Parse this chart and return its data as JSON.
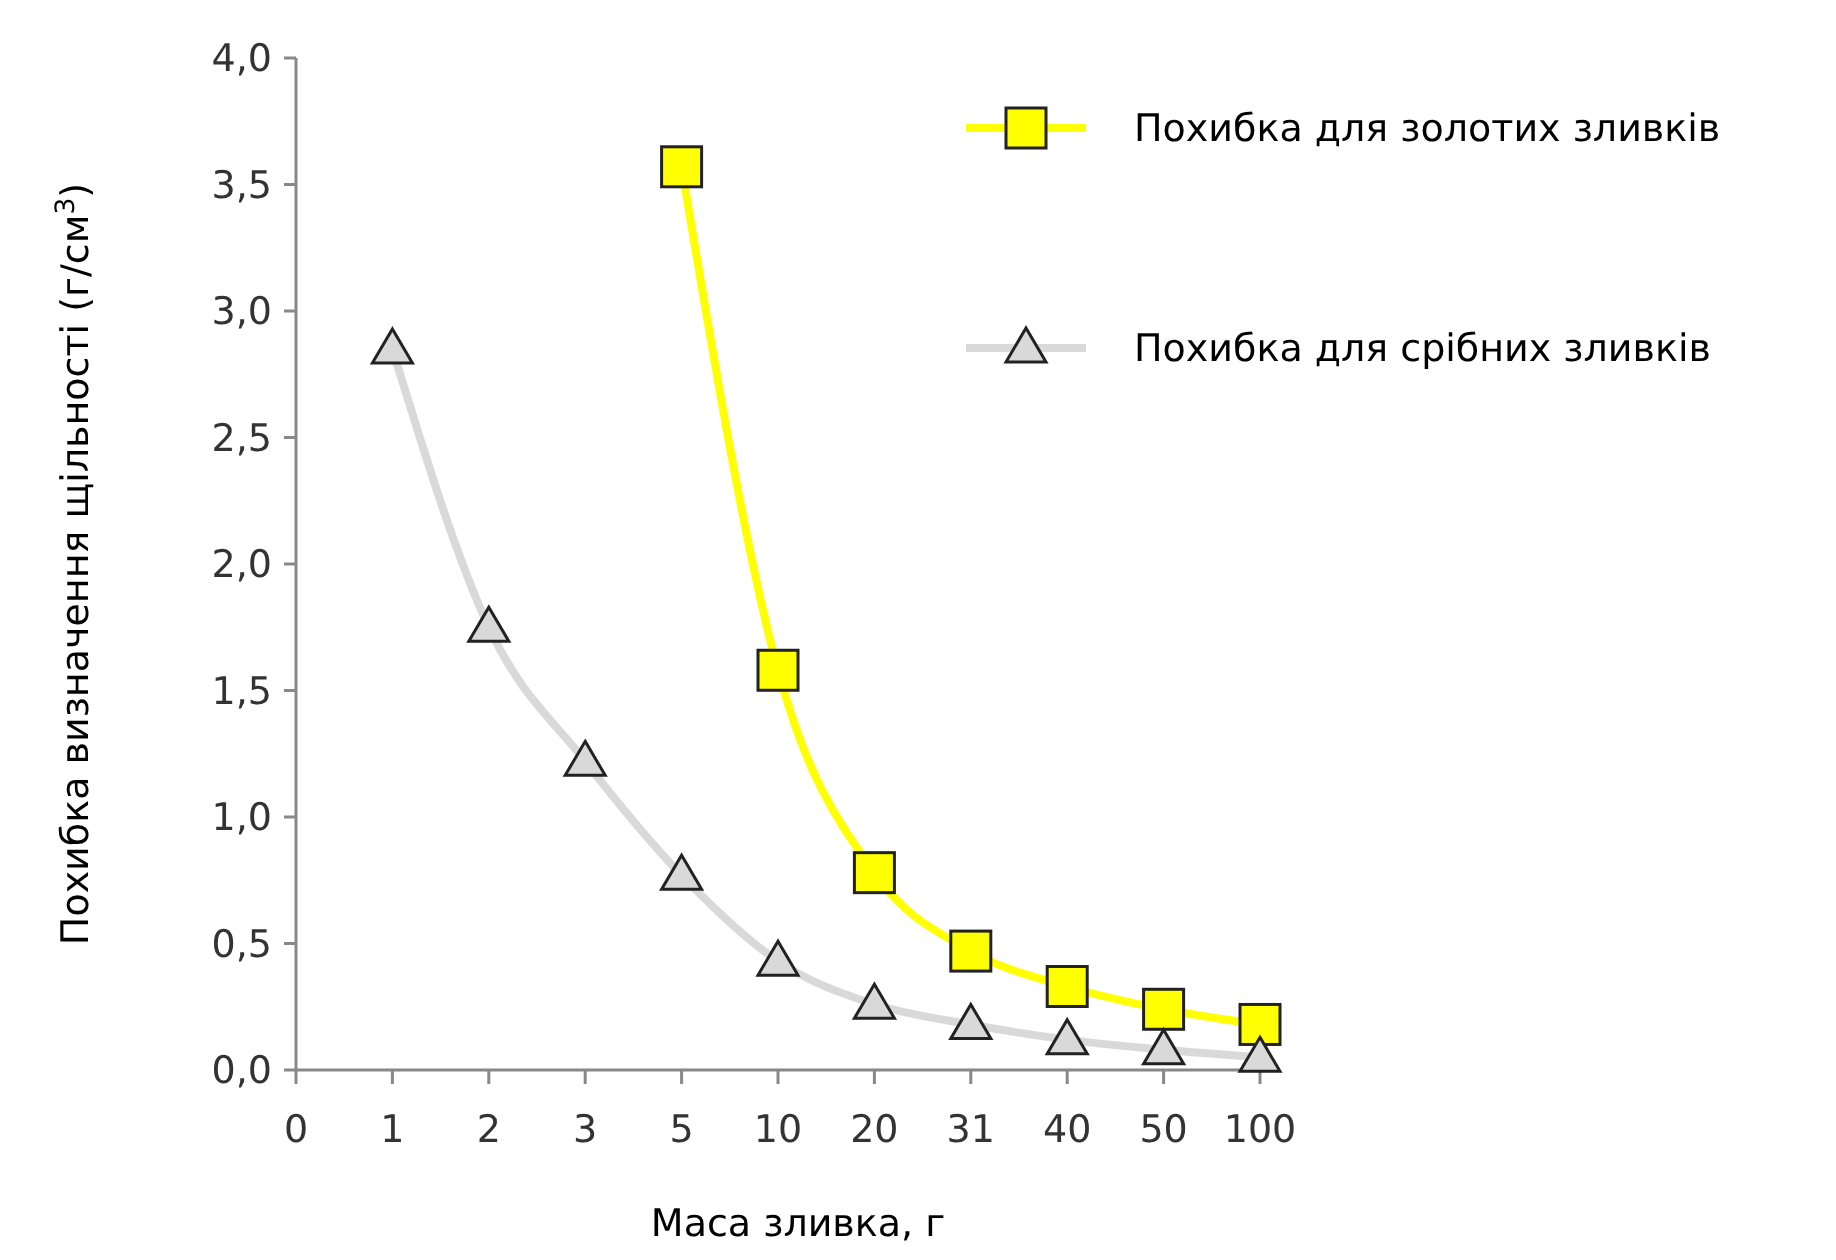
{
  "chart_data": {
    "type": "line",
    "xlabel": "Маса зливка, г",
    "ylabel": "Похибка визначення щільності (г/см$^{3}$)",
    "categories": [
      "0",
      "1",
      "2",
      "3",
      "5",
      "10",
      "20",
      "31",
      "40",
      "50",
      "100"
    ],
    "series": [
      {
        "name": "Похибка для золотих зливків",
        "color": "#ffff00",
        "marker": "square",
        "values": [
          null,
          null,
          null,
          null,
          3.57,
          1.58,
          0.78,
          0.47,
          0.33,
          0.24,
          0.18
        ]
      },
      {
        "name": "Похибка для срібних зливків",
        "color": "#d9d9d9",
        "marker": "triangle",
        "values": [
          null,
          2.85,
          1.75,
          1.22,
          0.77,
          0.43,
          0.26,
          0.18,
          0.12,
          0.08,
          0.05
        ]
      }
    ],
    "ylim": [
      0,
      4
    ],
    "yticks": [
      {
        "value": 0,
        "label": "0,0"
      },
      {
        "value": 0.5,
        "label": "0,5"
      },
      {
        "value": 1,
        "label": "1,0"
      },
      {
        "value": 1.5,
        "label": "1,5"
      },
      {
        "value": 2,
        "label": "2,0"
      },
      {
        "value": 2.5,
        "label": "2,5"
      },
      {
        "value": 3,
        "label": "3,0"
      },
      {
        "value": 3.5,
        "label": "3,5"
      },
      {
        "value": 4,
        "label": "4,0"
      }
    ],
    "grid": false,
    "legend": "top right"
  }
}
